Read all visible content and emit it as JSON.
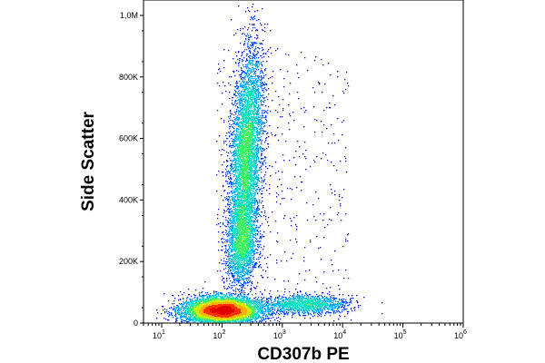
{
  "chart_data": {
    "type": "scatter",
    "style": "density-dot-plot",
    "xlabel": "CD307b PE",
    "ylabel": "Side Scatter",
    "x_scale": "log",
    "xlim": [
      5,
      1000000
    ],
    "ylim": [
      0,
      1050000
    ],
    "x_ticks": [
      {
        "value": 10,
        "base": "10",
        "exp": "1"
      },
      {
        "value": 100,
        "base": "10",
        "exp": "2"
      },
      {
        "value": 1000,
        "base": "10",
        "exp": "3"
      },
      {
        "value": 10000,
        "base": "10",
        "exp": "4"
      },
      {
        "value": 100000,
        "base": "10",
        "exp": "5"
      },
      {
        "value": 1000000,
        "base": "10",
        "exp": "6"
      }
    ],
    "y_ticks": [
      {
        "value": 0,
        "label": "0"
      },
      {
        "value": 200000,
        "label": "200K"
      },
      {
        "value": 400000,
        "label": "400K"
      },
      {
        "value": 600000,
        "label": "600K"
      },
      {
        "value": 800000,
        "label": "800K"
      },
      {
        "value": 1000000,
        "label": "1,0M"
      }
    ],
    "populations": [
      {
        "center_x": 100,
        "center_y": 40000,
        "spread_log_x": 0.32,
        "spread_y": 22000,
        "tilt": 0,
        "weight": 0.42
      },
      {
        "center_x": 250,
        "center_y": 550000,
        "spread_log_x": 0.13,
        "spread_y": 170000,
        "tilt": 0.22,
        "weight": 0.38
      },
      {
        "center_x": 220,
        "center_y": 260000,
        "spread_log_x": 0.12,
        "spread_y": 70000,
        "tilt": 0.1,
        "weight": 0.12
      },
      {
        "center_x": 2500,
        "center_y": 60000,
        "spread_log_x": 0.35,
        "spread_y": 15000,
        "tilt": 0,
        "weight": 0.08
      }
    ],
    "density_colors": [
      "#0a00c8",
      "#0044ff",
      "#00a8ff",
      "#00e0c0",
      "#3cf060",
      "#c8f000",
      "#ffb000",
      "#ff3000",
      "#e00000"
    ],
    "grid": false,
    "legend": "none"
  }
}
